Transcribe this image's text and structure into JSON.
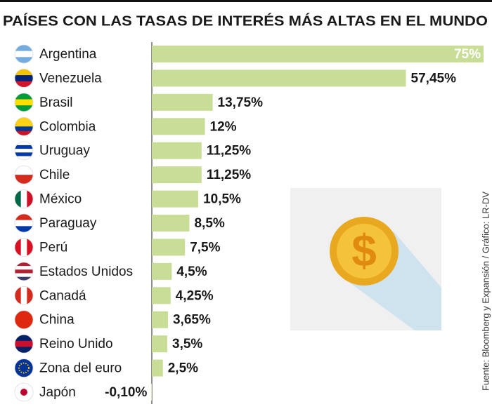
{
  "chart_data": {
    "type": "bar",
    "orientation": "horizontal",
    "title": "PAÍSES CON LAS TASAS DE INTERÉS MÁS ALTAS EN EL MUNDO",
    "source": "Fuente: Bloomberg y Expansión / Gráfico: LR-DV",
    "categories": [
      "Argentina",
      "Venezuela",
      "Brasil",
      "Colombia",
      "Uruguay",
      "Chile",
      "México",
      "Paraguay",
      "Perú",
      "Estados Unidos",
      "Canadá",
      "China",
      "Reino Unido",
      "Zona del euro",
      "Japón"
    ],
    "values": [
      75,
      57.45,
      13.75,
      12,
      11.25,
      11.25,
      10.5,
      8.5,
      7.5,
      4.5,
      4.25,
      3.65,
      3.5,
      2.5,
      -0.1
    ],
    "value_labels": [
      "75%",
      "57,45%",
      "13,75%",
      "12%",
      "11,25%",
      "11,25%",
      "10,5%",
      "8,5%",
      "7,5%",
      "4,5%",
      "4,25%",
      "3,65%",
      "3,5%",
      "2,5%",
      "-0,10%"
    ],
    "color": "#c8de96"
  }
}
